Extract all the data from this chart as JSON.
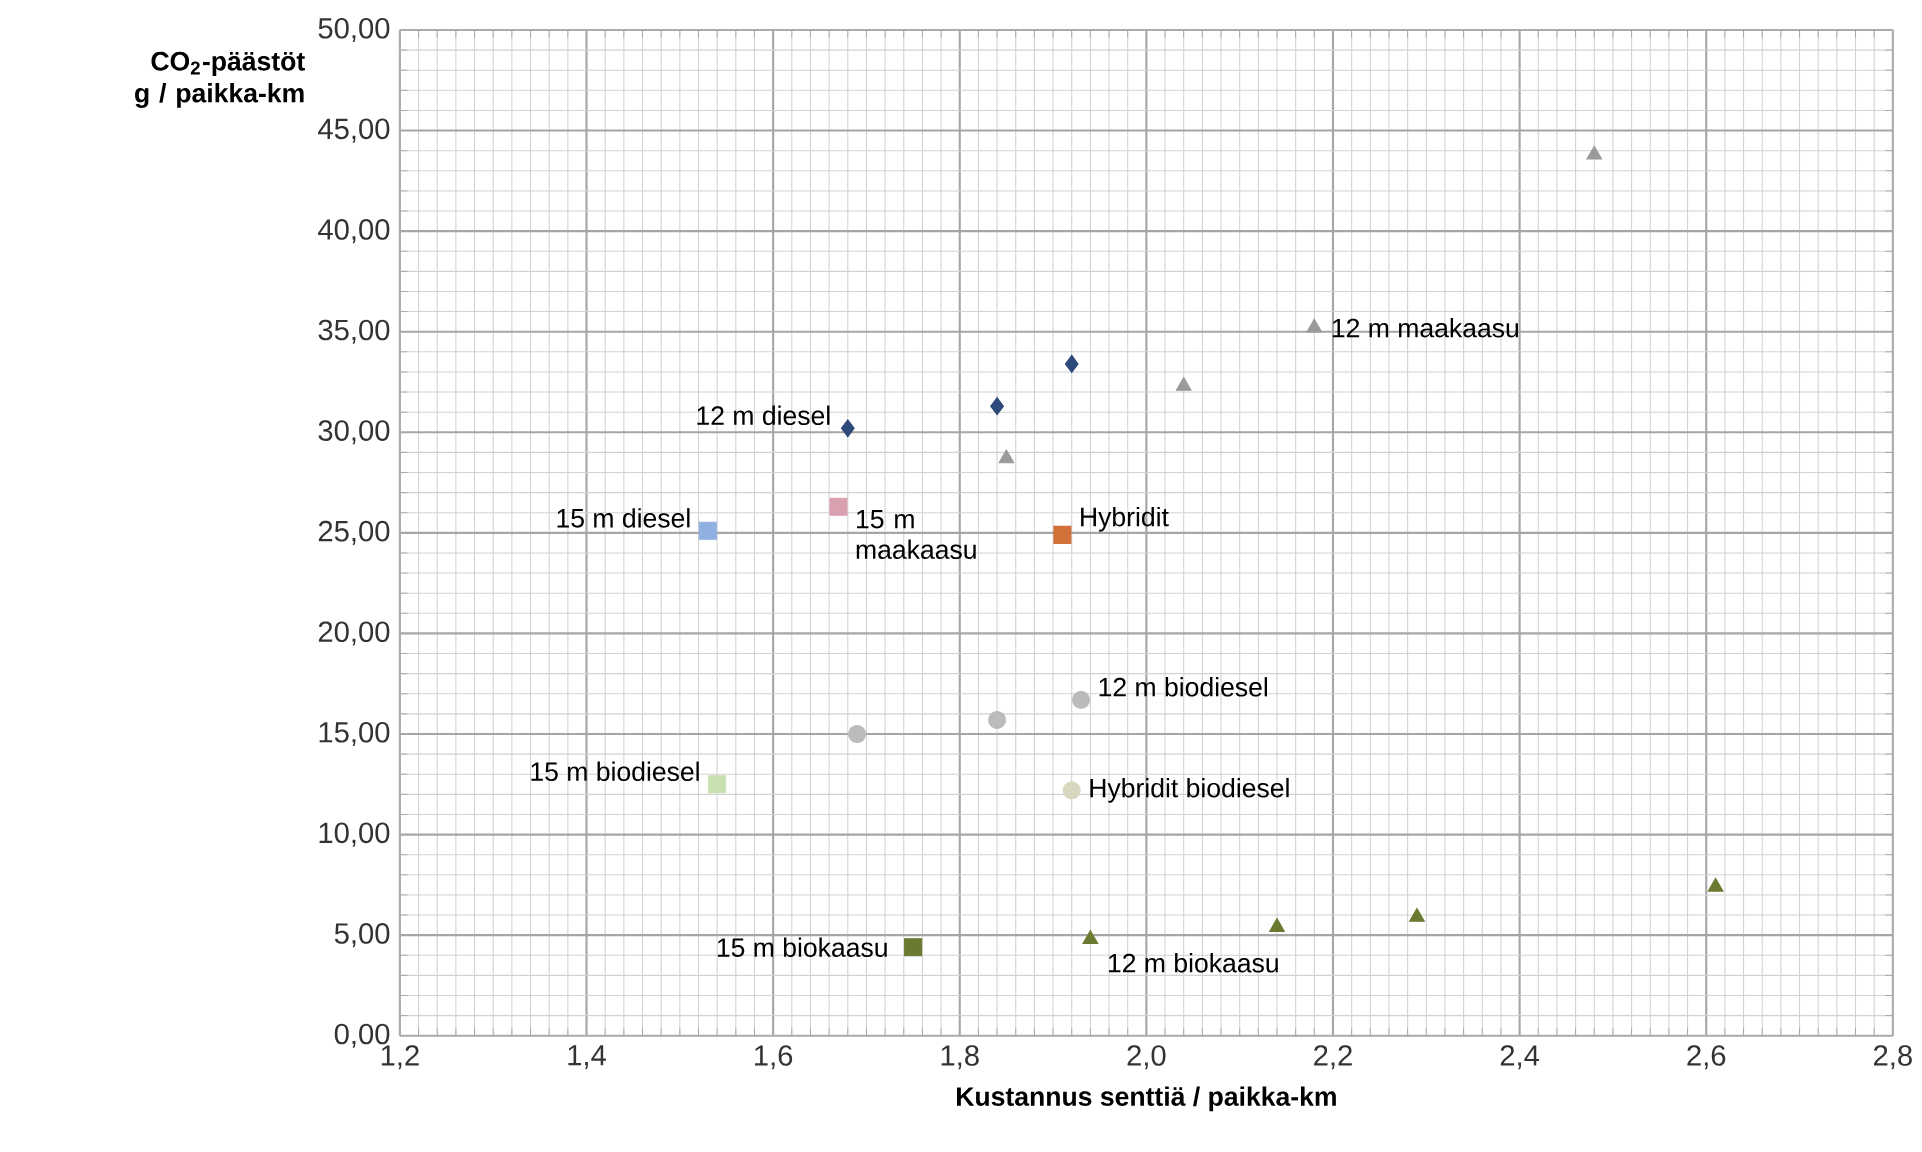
{
  "chart_data": {
    "type": "scatter",
    "xlabel": "Kustannus senttiä / paikka-km",
    "ylabel": "CO$_{2}$-päästöt g / paikka-km",
    "xlim": [
      1.2,
      2.8
    ],
    "ylim": [
      0,
      50
    ],
    "xticks": [
      {
        "value": 1.2,
        "label": "1,2"
      },
      {
        "value": 1.4,
        "label": "1,4"
      },
      {
        "value": 1.6,
        "label": "1,6"
      },
      {
        "value": 1.8,
        "label": "1,8"
      },
      {
        "value": 2.0,
        "label": "2,0"
      },
      {
        "value": 2.2,
        "label": "2,2"
      },
      {
        "value": 2.4,
        "label": "2,4"
      },
      {
        "value": 2.6,
        "label": "2,6"
      },
      {
        "value": 2.8,
        "label": "2,8"
      }
    ],
    "yticks": [
      {
        "value": 0,
        "label": "0,00"
      },
      {
        "value": 5,
        "label": "5,00"
      },
      {
        "value": 10,
        "label": "10,00"
      },
      {
        "value": 15,
        "label": "15,00"
      },
      {
        "value": 20,
        "label": "20,00"
      },
      {
        "value": 25,
        "label": "25,00"
      },
      {
        "value": 30,
        "label": "30,00"
      },
      {
        "value": 35,
        "label": "35,00"
      },
      {
        "value": 40,
        "label": "40,00"
      },
      {
        "value": 45,
        "label": "45,00"
      },
      {
        "value": 50,
        "label": "50,00"
      }
    ],
    "grid": true,
    "series": [
      {
        "name": "12 m diesel",
        "color": "#2e4a7a",
        "marker": "diamond",
        "x": [
          1.68,
          1.84,
          1.92
        ],
        "values": [
          30.2,
          31.3,
          33.4
        ]
      },
      {
        "name": "15 m diesel",
        "color": "#8fb0e0",
        "marker": "square",
        "x": [
          1.53
        ],
        "values": [
          25.1
        ]
      },
      {
        "name": "15 m maakaasu",
        "color": "#d9a0b0",
        "marker": "square",
        "x": [
          1.67
        ],
        "values": [
          26.3
        ]
      },
      {
        "name": "Hybridit",
        "color": "#d2703a",
        "marker": "square",
        "x": [
          1.91
        ],
        "values": [
          24.9
        ]
      },
      {
        "name": "12 m maakaasu",
        "color": "#9a9a9a",
        "marker": "triangle",
        "x": [
          1.85,
          2.04,
          2.18,
          2.48
        ],
        "values": [
          28.7,
          32.3,
          35.2,
          43.8
        ]
      },
      {
        "name": "12 m biodiesel",
        "color": "#bbbbbb",
        "marker": "circle",
        "x": [
          1.69,
          1.84,
          1.93
        ],
        "values": [
          15.0,
          15.7,
          16.7
        ]
      },
      {
        "name": "15 m biodiesel",
        "color": "#c8e0b0",
        "marker": "square",
        "x": [
          1.54
        ],
        "values": [
          12.5
        ]
      },
      {
        "name": "Hybridit biodiesel",
        "color": "#d8d8c0",
        "marker": "circle",
        "x": [
          1.92
        ],
        "values": [
          12.2
        ]
      },
      {
        "name": "15 m biokaasu",
        "color": "#6a7a30",
        "marker": "square",
        "x": [
          1.75
        ],
        "values": [
          4.4
        ]
      },
      {
        "name": "12 m biokaasu",
        "color": "#6a7a30",
        "marker": "triangle",
        "x": [
          1.94,
          2.14,
          2.29,
          2.61
        ],
        "values": [
          4.8,
          5.4,
          5.9,
          7.4
        ]
      }
    ]
  }
}
